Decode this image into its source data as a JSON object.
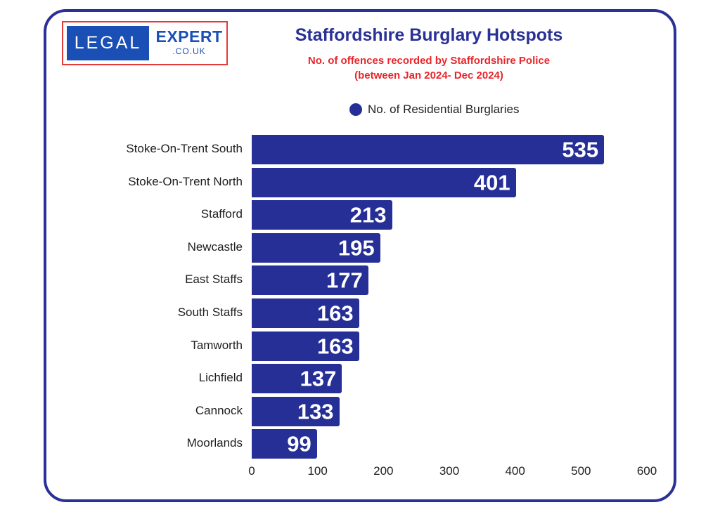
{
  "logo": {
    "left": "LEGAL",
    "right_main": "EXPERT",
    "right_sub": ".CO.UK"
  },
  "header": {
    "title": "Staffordshire Burglary Hotspots",
    "subtitle_line1": "No. of offences recorded by Staffordshire Police",
    "subtitle_line2": "(between Jan 2024- Dec 2024)"
  },
  "legend": {
    "label": "No. of Residential Burglaries",
    "color": "#262f96"
  },
  "colors": {
    "bar": "#262f96",
    "frame": "#2a3196",
    "title": "#2a3196",
    "subtitle": "#e8262b",
    "logo_blue": "#1a4fb5",
    "logo_border": "#e53a3a"
  },
  "chart_data": {
    "type": "bar",
    "orientation": "horizontal",
    "title": "Staffordshire Burglary Hotspots",
    "subtitle": "No. of offences recorded by Staffordshire Police (between Jan 2024- Dec 2024)",
    "categories": [
      "Stoke-On-Trent South",
      "Stoke-On-Trent North",
      "Stafford",
      "Newcastle",
      "East Staffs",
      "South Staffs",
      "Tamworth",
      "Lichfield",
      "Cannock",
      "Moorlands"
    ],
    "series": [
      {
        "name": "No. of Residential Burglaries",
        "values": [
          535,
          401,
          213,
          195,
          177,
          163,
          163,
          137,
          133,
          99
        ]
      }
    ],
    "xlabel": "",
    "ylabel": "",
    "xlim": [
      0,
      600
    ],
    "xticks": [
      "0",
      "100",
      "200",
      "300",
      "400",
      "500",
      "600"
    ],
    "grid": false,
    "legend_position": "top",
    "data_labels": true
  }
}
